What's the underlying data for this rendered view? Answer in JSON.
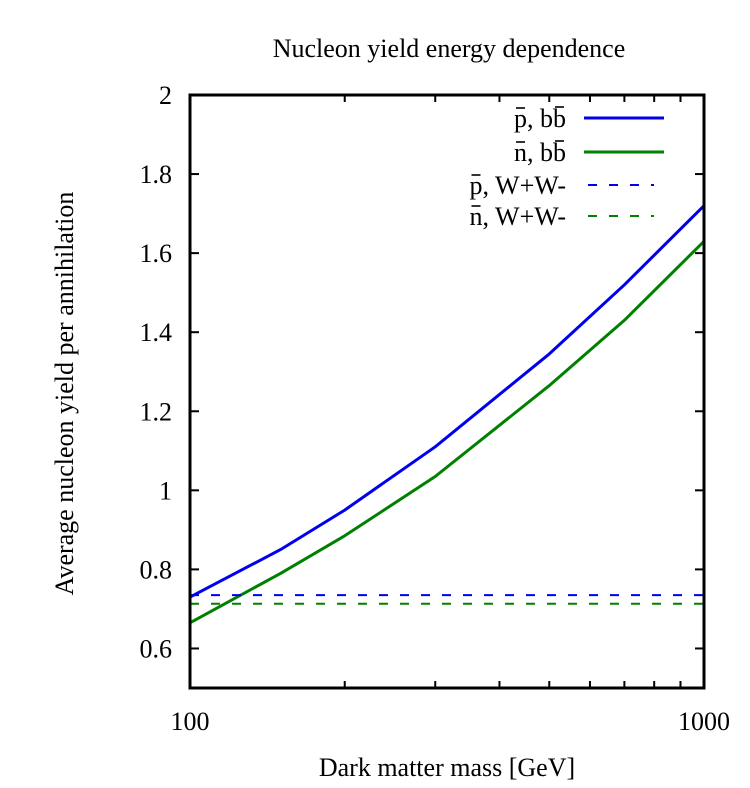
{
  "chart_data": {
    "type": "line",
    "title": "Nucleon yield energy dependence",
    "xlabel": "Dark matter mass [GeV]",
    "ylabel": "Average nucleon yield per annihilation",
    "xscale": "log",
    "xlim": [
      100,
      1000
    ],
    "ylim": [
      0.5,
      2.0
    ],
    "x_ticks": [
      100,
      1000
    ],
    "x_tick_labels": [
      "100",
      "1000"
    ],
    "x_minor_ticks": [
      200,
      300,
      400,
      500,
      600,
      700,
      800,
      900
    ],
    "y_ticks": [
      0.6,
      0.8,
      1.0,
      1.2,
      1.4,
      1.6,
      1.8,
      2.0
    ],
    "y_tick_labels": [
      "0.6",
      "0.8",
      "1",
      "1.2",
      "1.4",
      "1.6",
      "1.8",
      "2"
    ],
    "legend_position": "top-right",
    "series": [
      {
        "name": "p̄, bb̄",
        "legend": {
          "particle": "p",
          "sep": ", ",
          "channel": "bb",
          "channel_bar": "b"
        },
        "color": "#0000ee",
        "style": "solid",
        "x": [
          100,
          150,
          200,
          300,
          500,
          700,
          1000
        ],
        "y": [
          0.73,
          0.85,
          0.95,
          1.11,
          1.345,
          1.52,
          1.72
        ]
      },
      {
        "name": "n̄, bb̄",
        "legend": {
          "particle": "n",
          "sep": ", ",
          "channel": "bb",
          "channel_bar": "b"
        },
        "color": "#008000",
        "style": "solid",
        "x": [
          100,
          150,
          200,
          300,
          500,
          700,
          1000
        ],
        "y": [
          0.665,
          0.79,
          0.885,
          1.035,
          1.265,
          1.43,
          1.63
        ]
      },
      {
        "name": "p̄, W+W-",
        "legend": {
          "particle": "p",
          "sep": ", ",
          "channel": "W+W-"
        },
        "color": "#0000ee",
        "style": "dashed",
        "x": [
          100,
          1000
        ],
        "y": [
          0.735,
          0.735
        ]
      },
      {
        "name": "n̄, W+W-",
        "legend": {
          "particle": "n",
          "sep": ", ",
          "channel": "W+W-"
        },
        "color": "#008000",
        "style": "dashed",
        "x": [
          100,
          1000
        ],
        "y": [
          0.713,
          0.713
        ]
      }
    ]
  }
}
